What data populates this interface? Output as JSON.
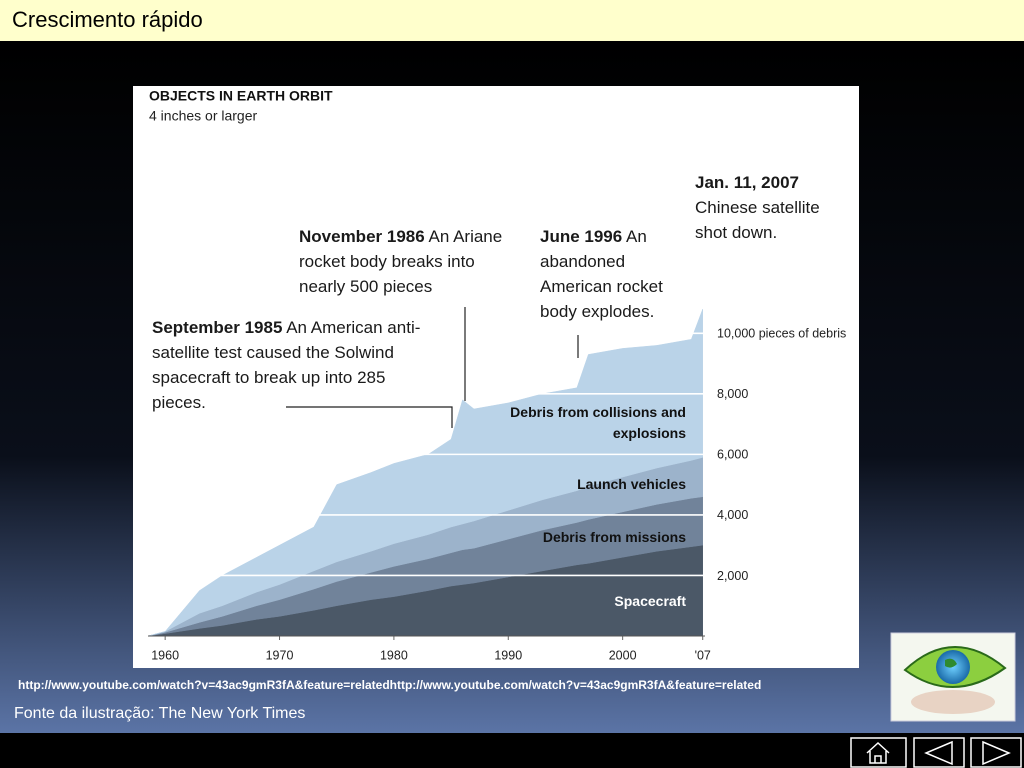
{
  "header": {
    "title": "Crescimento rápido"
  },
  "chart_data": {
    "type": "area",
    "stacked": true,
    "title": "OBJECTS IN EARTH ORBIT",
    "subtitle": "4 inches or larger",
    "x": [
      1958.5,
      1960,
      1963,
      1965,
      1968,
      1970,
      1973,
      1975,
      1978,
      1980,
      1983,
      1985,
      1986,
      1987,
      1990,
      1993,
      1996,
      1997,
      2000,
      2003,
      2006,
      2007
    ],
    "series": [
      {
        "name": "Spacecraft",
        "color": "#4b5867",
        "values": [
          0,
          80,
          250,
          350,
          550,
          650,
          850,
          1000,
          1200,
          1300,
          1500,
          1650,
          1700,
          1750,
          1950,
          2150,
          2350,
          2400,
          2600,
          2800,
          2950,
          3000
        ]
      },
      {
        "name": "Debris from missions",
        "color": "#71839a",
        "values": [
          0,
          40,
          200,
          300,
          450,
          550,
          700,
          800,
          900,
          1000,
          1050,
          1100,
          1150,
          1150,
          1250,
          1350,
          1400,
          1450,
          1500,
          1550,
          1600,
          1600
        ]
      },
      {
        "name": "Launch vehicles",
        "color": "#9cb3cb",
        "values": [
          0,
          30,
          300,
          350,
          450,
          500,
          600,
          650,
          700,
          750,
          800,
          850,
          850,
          900,
          950,
          1000,
          1050,
          1100,
          1150,
          1200,
          1250,
          1300
        ]
      },
      {
        "name": "Debris from collisions and explosions",
        "color": "#bad3e8",
        "values": [
          0,
          0,
          750,
          1000,
          1150,
          1300,
          1450,
          2550,
          2600,
          2650,
          2650,
          2900,
          4100,
          3700,
          3550,
          3500,
          3400,
          4350,
          4250,
          4050,
          4000,
          4900
        ]
      }
    ],
    "xlim": [
      1958.5,
      2007.2
    ],
    "ylim": [
      0,
      11000
    ],
    "xticks": [
      1960,
      1970,
      1980,
      1990,
      2000,
      {
        "value": 2007,
        "label": "'07"
      }
    ],
    "yticks": [
      {
        "value": 2000,
        "label": "2,000"
      },
      {
        "value": 4000,
        "label": "4,000"
      },
      {
        "value": 6000,
        "label": "6,000"
      },
      {
        "value": 8000,
        "label": "8,000"
      },
      {
        "value": 10000,
        "label": "10,000 pieces of debris"
      }
    ],
    "grid": true,
    "annotations": [
      {
        "title": "September 1985",
        "text": "An American anti-satellite test caused the Solwind spacecraft to break up into 285 pieces."
      },
      {
        "title": "November 1986",
        "text": "An Ariane rocket body breaks into nearly 500 pieces"
      },
      {
        "title": "June 1996",
        "text": "An abandoned American rocket body explodes."
      },
      {
        "title": "Jan. 11, 2007",
        "text": "Chinese satellite shot down."
      }
    ]
  },
  "footer": {
    "url": "http://www.youtube.com/watch?v=43ac9gmR3fA&feature=relatedhttp://www.youtube.com/watch?v=43ac9gmR3fA&feature=related",
    "source": "Fonte da ilustração: The New York Times"
  }
}
